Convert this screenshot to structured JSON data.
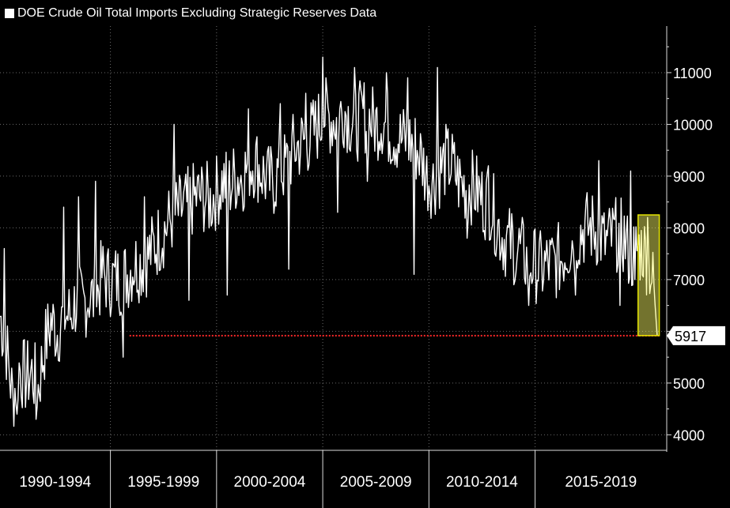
{
  "chart_data": {
    "type": "line",
    "title": "DOE Crude Oil Total Imports Excluding Strategic Reserves Data",
    "legend_position": "top-left",
    "grid": true,
    "xlabel": "",
    "ylabel": "",
    "x_range": [
      1989.4,
      2020.8
    ],
    "ylim": [
      3700,
      11900
    ],
    "y_ticks": [
      4000,
      5000,
      6000,
      7000,
      8000,
      9000,
      10000,
      11000
    ],
    "y_tick_labels": [
      "4000",
      "5000",
      "",
      "7000",
      "8000",
      "9000",
      "10000",
      "11000"
    ],
    "x_tick_labels": [
      "1990-1994",
      "1995-1999",
      "2000-2004",
      "2005-2009",
      "2010-2014",
      "2015-2019"
    ],
    "x_bands": [
      [
        1989.4,
        1994.6
      ],
      [
        1994.6,
        1999.6
      ],
      [
        1999.6,
        2004.6
      ],
      [
        2004.6,
        2009.6
      ],
      [
        2009.6,
        2014.6
      ],
      [
        2014.6,
        2020.8
      ]
    ],
    "series": [
      {
        "name": "DOE Crude Oil Total Imports Excluding Strategic Reserves Data",
        "color": "#ffffff",
        "points": [
          [
            1989.4,
            6300
          ],
          [
            1989.7,
            5700
          ],
          [
            1990.0,
            4700
          ],
          [
            1990.3,
            5300
          ],
          [
            1990.6,
            5100
          ],
          [
            1990.9,
            5200
          ],
          [
            1991.2,
            4900
          ],
          [
            1991.5,
            5700
          ],
          [
            1991.8,
            6200
          ],
          [
            1992.1,
            6000
          ],
          [
            1992.4,
            6300
          ],
          [
            1992.7,
            6300
          ],
          [
            1993.0,
            6600
          ],
          [
            1993.3,
            6500
          ],
          [
            1993.6,
            6700
          ],
          [
            1993.9,
            6600
          ],
          [
            1994.2,
            7100
          ],
          [
            1994.5,
            7000
          ],
          [
            1994.8,
            7000
          ],
          [
            1995.1,
            7000
          ],
          [
            1995.4,
            7100
          ],
          [
            1995.7,
            7300
          ],
          [
            1996.0,
            7300
          ],
          [
            1996.3,
            7400
          ],
          [
            1996.6,
            7600
          ],
          [
            1996.9,
            7800
          ],
          [
            1997.2,
            8000
          ],
          [
            1997.5,
            8200
          ],
          [
            1997.8,
            8300
          ],
          [
            1998.1,
            8400
          ],
          [
            1998.4,
            8500
          ],
          [
            1998.7,
            8600
          ],
          [
            1999.0,
            8600
          ],
          [
            1999.3,
            8500
          ],
          [
            1999.6,
            8700
          ],
          [
            1999.9,
            8900
          ],
          [
            2000.2,
            8800
          ],
          [
            2000.5,
            9000
          ],
          [
            2000.8,
            9000
          ],
          [
            2001.1,
            9200
          ],
          [
            2001.4,
            9300
          ],
          [
            2001.7,
            9100
          ],
          [
            2002.0,
            8900
          ],
          [
            2002.3,
            8900
          ],
          [
            2002.6,
            9100
          ],
          [
            2002.9,
            9200
          ],
          [
            2003.2,
            9500
          ],
          [
            2003.5,
            9600
          ],
          [
            2003.8,
            9700
          ],
          [
            2004.1,
            9800
          ],
          [
            2004.4,
            10000
          ],
          [
            2004.7,
            10200
          ],
          [
            2005.0,
            10100
          ],
          [
            2005.3,
            10100
          ],
          [
            2005.6,
            10300
          ],
          [
            2005.9,
            10100
          ],
          [
            2006.2,
            10000
          ],
          [
            2006.5,
            10200
          ],
          [
            2006.8,
            10100
          ],
          [
            2007.1,
            10000
          ],
          [
            2007.4,
            10100
          ],
          [
            2007.7,
            9900
          ],
          [
            2008.0,
            9800
          ],
          [
            2008.3,
            9700
          ],
          [
            2008.6,
            9700
          ],
          [
            2008.9,
            9600
          ],
          [
            2009.2,
            9400
          ],
          [
            2009.5,
            9000
          ],
          [
            2009.8,
            8900
          ],
          [
            2010.1,
            9100
          ],
          [
            2010.4,
            9300
          ],
          [
            2010.7,
            9200
          ],
          [
            2011.0,
            8900
          ],
          [
            2011.3,
            8800
          ],
          [
            2011.6,
            8800
          ],
          [
            2011.9,
            8700
          ],
          [
            2012.2,
            8500
          ],
          [
            2012.5,
            8500
          ],
          [
            2012.8,
            8100
          ],
          [
            2013.1,
            7800
          ],
          [
            2013.4,
            7700
          ],
          [
            2013.7,
            7700
          ],
          [
            2014.0,
            7500
          ],
          [
            2014.3,
            7300
          ],
          [
            2014.6,
            7300
          ],
          [
            2014.9,
            7200
          ],
          [
            2015.2,
            7300
          ],
          [
            2015.5,
            7300
          ],
          [
            2015.8,
            7400
          ],
          [
            2016.1,
            7600
          ],
          [
            2016.4,
            7800
          ],
          [
            2016.7,
            7900
          ],
          [
            2017.0,
            8000
          ],
          [
            2017.3,
            8000
          ],
          [
            2017.6,
            7900
          ],
          [
            2017.9,
            7700
          ],
          [
            2018.2,
            7800
          ],
          [
            2018.5,
            7900
          ],
          [
            2018.8,
            7800
          ],
          [
            2019.1,
            7400
          ],
          [
            2019.4,
            7600
          ],
          [
            2019.7,
            7600
          ],
          [
            2020.0,
            7300
          ],
          [
            2020.2,
            6800
          ],
          [
            2020.35,
            5917
          ]
        ]
      }
    ],
    "spikes": [
      [
        1989.6,
        7600
      ],
      [
        1990.2,
        4400
      ],
      [
        1991.1,
        4300
      ],
      [
        1992.4,
        8400
      ],
      [
        1993.1,
        8600
      ],
      [
        1993.9,
        8900
      ],
      [
        1995.2,
        5500
      ],
      [
        1996.2,
        8600
      ],
      [
        1997.6,
        10000
      ],
      [
        1998.3,
        6600
      ],
      [
        2000.1,
        6700
      ],
      [
        2001.1,
        10300
      ],
      [
        2002.6,
        10400
      ],
      [
        2003.0,
        7200
      ],
      [
        2003.8,
        10600
      ],
      [
        2004.6,
        11300
      ],
      [
        2005.3,
        8300
      ],
      [
        2006.1,
        11100
      ],
      [
        2006.7,
        8900
      ],
      [
        2007.6,
        11000
      ],
      [
        2008.6,
        10900
      ],
      [
        2008.9,
        7100
      ],
      [
        2010.0,
        11100
      ],
      [
        2011.4,
        7800
      ],
      [
        2012.4,
        9200
      ],
      [
        2013.6,
        6900
      ],
      [
        2014.3,
        6500
      ],
      [
        2016.5,
        6700
      ],
      [
        2017.6,
        9300
      ],
      [
        2018.6,
        6500
      ],
      [
        2019.1,
        9100
      ],
      [
        2019.3,
        7000
      ],
      [
        2019.9,
        8200
      ]
    ],
    "reference_line": {
      "value": 5917,
      "color": "#ff2a2a",
      "x_start": 1995.5,
      "x_end": 2020.45
    },
    "last_value_label": "5917",
    "highlight_box": {
      "x_start": 2019.45,
      "x_end": 2020.45,
      "y_start": 5917,
      "y_end": 8250,
      "color": "#ffff66"
    }
  }
}
